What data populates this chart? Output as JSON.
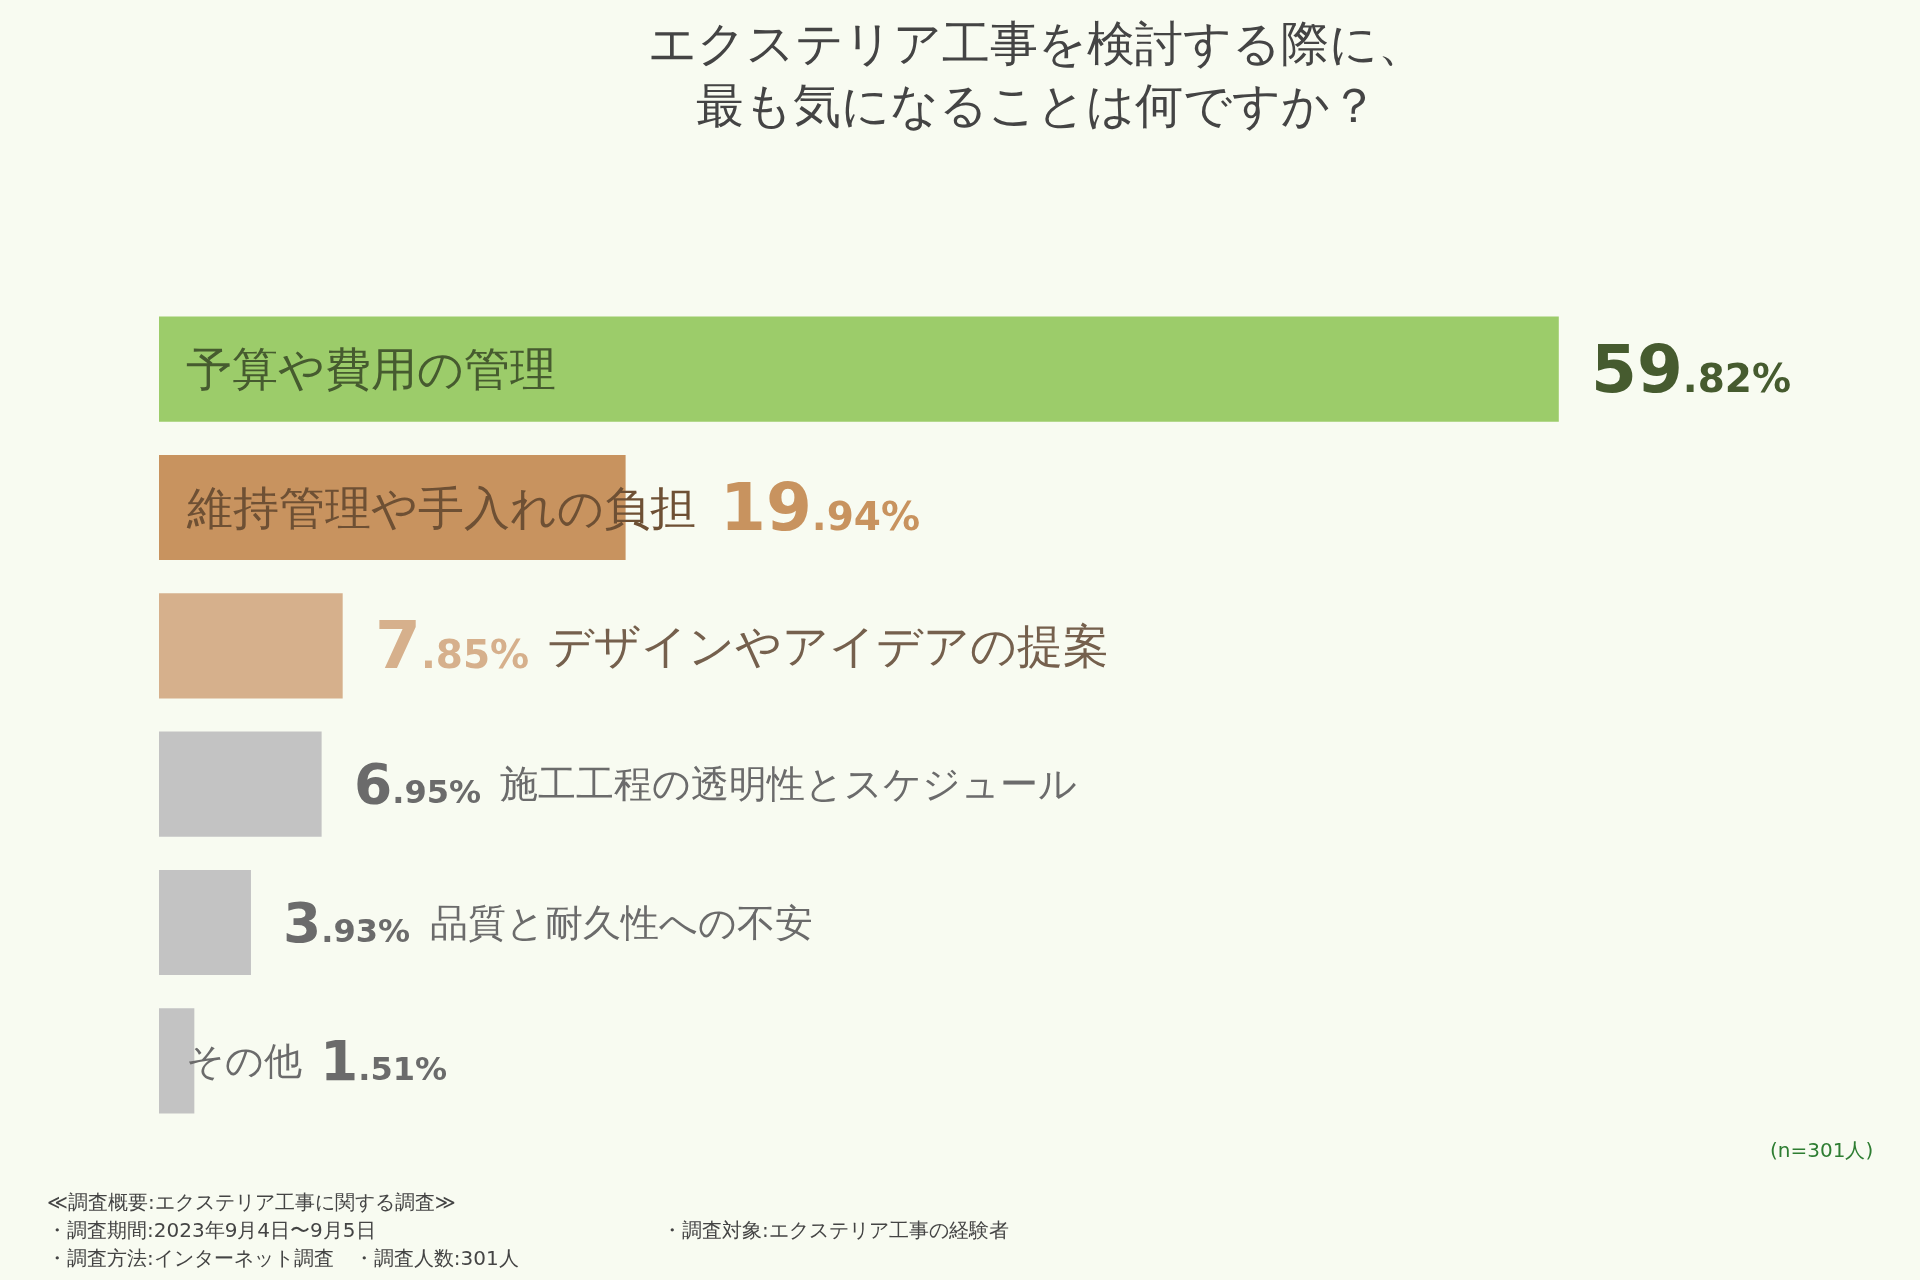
{
  "chart_data": {
    "type": "bar",
    "orientation": "horizontal",
    "title": "エクステリア工事を検討する際に、最も気になることは何ですか？",
    "categories": [
      "予算や費用の管理",
      "維持管理や手入れの負担",
      "デザインやアイデアの提案",
      "施工工程の透明性とスケジュール",
      "品質と耐久性への不安",
      "その他"
    ],
    "values": [
      59.82,
      19.94,
      7.85,
      6.95,
      3.93,
      1.51
    ],
    "colors": [
      "#9ccc6a",
      "#c8935f",
      "#d6b08c",
      "#c3c3c3",
      "#c3c3c3",
      "#c3c3c3"
    ],
    "value_labels": [
      "59.82%",
      "19.94%",
      "7.85%",
      "6.95%",
      "3.93%",
      "1.51%"
    ],
    "xlim": [
      0,
      75
    ],
    "tick_labels": false,
    "grid": false,
    "legend": false,
    "annotations": [
      "(n=301人)",
      "≪調査概要:エクステリア工事に関する調査≫",
      "・調査期間:2023年9月4日〜9月5日",
      "・調査方法:インターネット調査　・調査人数:301人",
      "・調査対象:エクステリア工事の経験者"
    ]
  }
}
